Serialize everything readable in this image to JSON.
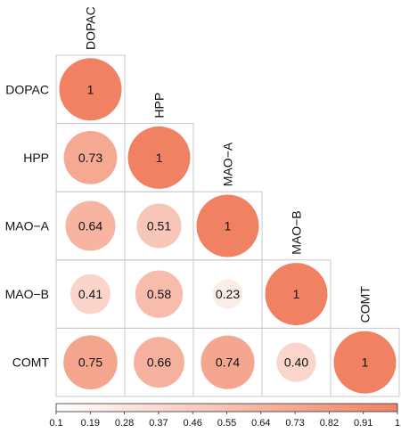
{
  "chart_data": {
    "type": "heatmap",
    "subtype": "lower-triangular correlation matrix with circle markers",
    "variables": [
      "DOPAC",
      "HPP",
      "MAO−A",
      "MAO−B",
      "COMT"
    ],
    "matrix": [
      [
        1,
        null,
        null,
        null,
        null
      ],
      [
        0.73,
        1,
        null,
        null,
        null
      ],
      [
        0.64,
        0.51,
        1,
        null,
        null
      ],
      [
        0.41,
        0.58,
        0.23,
        1,
        null
      ],
      [
        0.75,
        0.66,
        0.74,
        0.4,
        1
      ]
    ],
    "cell_labels": [
      [
        "1",
        "",
        "",
        "",
        ""
      ],
      [
        "0.73",
        "1",
        "",
        "",
        ""
      ],
      [
        "0.64",
        "0.51",
        "1",
        "",
        ""
      ],
      [
        "0.41",
        "0.58",
        "0.23",
        "1",
        ""
      ],
      [
        "0.75",
        "0.66",
        "0.74",
        "0.40",
        "1"
      ]
    ],
    "colorbar": {
      "range": [
        0.1,
        1
      ],
      "ticks": [
        "0.1",
        "0.19",
        "0.28",
        "0.37",
        "0.46",
        "0.55",
        "0.64",
        "0.73",
        "0.82",
        "0.91",
        "1"
      ],
      "color_low": "#ffffff",
      "color_high": "#f08263",
      "placement": "bottom"
    },
    "colors": {
      "grid": "#c8c8c8",
      "high": "#f08263",
      "low": "#ffffff"
    }
  }
}
